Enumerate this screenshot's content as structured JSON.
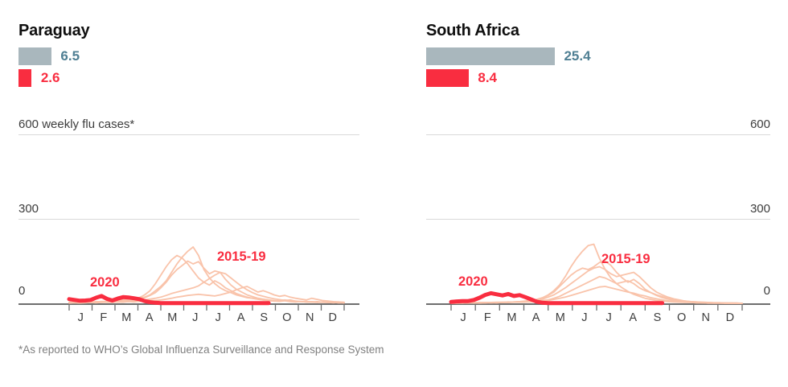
{
  "colors": {
    "red": "#f92d40",
    "salmon": "#f9c3aa",
    "gray_bar": "#a9b7bd",
    "blue_value_label": "#4f7f93",
    "gridline": "#d9d9d9",
    "axis": "#6e6e6e"
  },
  "footnote": "*As reported to WHO’s Global Influenza Surveillance and Response System",
  "months": [
    "J",
    "F",
    "M",
    "A",
    "M",
    "J",
    "J",
    "A",
    "S",
    "O",
    "N",
    "D"
  ],
  "panels": [
    {
      "title": "Paraguay",
      "bars": {
        "gray": {
          "value": 6.5,
          "label": "6.5"
        },
        "red": {
          "value": 2.6,
          "label": "2.6"
        }
      },
      "y_axis": {
        "top_label": "600 weekly flu cases*",
        "mid_label": "300",
        "zero_label": "0"
      },
      "annotations": {
        "current": "2020",
        "past": "2015-19"
      }
    },
    {
      "title": "South Africa",
      "bars": {
        "gray": {
          "value": 25.4,
          "label": "25.4"
        },
        "red": {
          "value": 8.4,
          "label": "8.4"
        }
      },
      "y_axis": {
        "top_label": "600",
        "mid_label": "300",
        "zero_label": "0"
      },
      "annotations": {
        "current": "2020",
        "past": "2015-19"
      }
    }
  ],
  "chart_data": [
    {
      "type": "line",
      "title": "Paraguay",
      "ylabel": "weekly flu cases",
      "ylim": [
        0,
        600
      ],
      "yticks": [
        0,
        300,
        600
      ],
      "months": [
        "J",
        "F",
        "M",
        "A",
        "M",
        "J",
        "J",
        "A",
        "S",
        "O",
        "N",
        "D"
      ],
      "summary_bars": {
        "gray_value": 6.5,
        "red_value": 2.6
      },
      "series": [
        {
          "name": "2015-19",
          "lines": [
            [
              3,
              4,
              3,
              5,
              4,
              6,
              5,
              7,
              8,
              10,
              12,
              15,
              14,
              18,
              22,
              30,
              45,
              60,
              80,
              110,
              140,
              165,
              185,
              200,
              170,
              120,
              90,
              70,
              55,
              45,
              38,
              30,
              25,
              20,
              18,
              15,
              12,
              10,
              8,
              10,
              12,
              9,
              7,
              6,
              5,
              6,
              4,
              5,
              3,
              4,
              3,
              2
            ],
            [
              2,
              3,
              2,
              4,
              3,
              5,
              4,
              6,
              5,
              8,
              10,
              12,
              15,
              20,
              30,
              45,
              70,
              100,
              130,
              155,
              170,
              160,
              140,
              115,
              90,
              75,
              65,
              80,
              70,
              55,
              45,
              35,
              28,
              22,
              18,
              15,
              12,
              10,
              8,
              7,
              9,
              6,
              5,
              7,
              5,
              4,
              3,
              4,
              3,
              2,
              3,
              2
            ],
            [
              4,
              3,
              5,
              4,
              6,
              5,
              7,
              6,
              8,
              7,
              9,
              11,
              13,
              16,
              20,
              28,
              38,
              55,
              75,
              100,
              120,
              135,
              150,
              140,
              148,
              125,
              105,
              115,
              110,
              85,
              65,
              50,
              40,
              30,
              24,
              18,
              15,
              12,
              10,
              8,
              10,
              12,
              8,
              6,
              7,
              5,
              6,
              4,
              3,
              4,
              2,
              3
            ],
            [
              2,
              3,
              2,
              3,
              4,
              3,
              5,
              4,
              6,
              5,
              7,
              6,
              8,
              10,
              12,
              15,
              18,
              22,
              28,
              35,
              40,
              45,
              50,
              55,
              62,
              75,
              88,
              100,
              110,
              105,
              90,
              75,
              60,
              48,
              38,
              30,
              25,
              20,
              16,
              13,
              10,
              8,
              7,
              6,
              5,
              4,
              5,
              4,
              3,
              3,
              2,
              2
            ],
            [
              1,
              2,
              1,
              2,
              3,
              2,
              3,
              4,
              3,
              5,
              4,
              6,
              5,
              7,
              8,
              10,
              10,
              12,
              15,
              18,
              22,
              25,
              28,
              30,
              32,
              30,
              28,
              26,
              30,
              35,
              40,
              48,
              55,
              60,
              50,
              40,
              45,
              38,
              30,
              25,
              28,
              22,
              18,
              15,
              12,
              18,
              14,
              10,
              8,
              6,
              5,
              4
            ]
          ]
        },
        {
          "name": "2020",
          "values": [
            15,
            12,
            9,
            10,
            12,
            20,
            26,
            16,
            10,
            17,
            22,
            21,
            18,
            15,
            8,
            4,
            2,
            1,
            1,
            1,
            1,
            1,
            1,
            1,
            1,
            1,
            1,
            1,
            1,
            1,
            1,
            1,
            1,
            1,
            1,
            1,
            1,
            1
          ]
        }
      ]
    },
    {
      "type": "line",
      "title": "South Africa",
      "ylabel": "weekly flu cases",
      "ylim": [
        0,
        600
      ],
      "yticks": [
        0,
        300,
        600
      ],
      "months": [
        "J",
        "F",
        "M",
        "A",
        "M",
        "J",
        "J",
        "A",
        "S",
        "O",
        "N",
        "D"
      ],
      "summary_bars": {
        "gray_value": 25.4,
        "red_value": 8.4
      },
      "series": [
        {
          "name": "2015-19",
          "lines": [
            [
              1,
              1,
              2,
              1,
              2,
              2,
              3,
              2,
              3,
              4,
              3,
              5,
              6,
              8,
              10,
              14,
              20,
              30,
              45,
              65,
              95,
              130,
              160,
              185,
              205,
              210,
              160,
              120,
              90,
              70,
              55,
              42,
              32,
              25,
              18,
              14,
              10,
              8,
              6,
              5,
              4,
              3,
              3,
              2,
              2,
              1,
              1,
              1,
              1,
              1,
              0,
              0
            ],
            [
              1,
              2,
              1,
              2,
              2,
              3,
              2,
              3,
              3,
              4,
              4,
              5,
              6,
              6,
              8,
              12,
              18,
              28,
              40,
              60,
              80,
              100,
              115,
              125,
              120,
              130,
              145,
              150,
              135,
              110,
              90,
              75,
              85,
              70,
              50,
              38,
              28,
              20,
              15,
              10,
              8,
              6,
              4,
              3,
              2,
              2,
              1,
              1,
              1,
              0,
              0,
              0
            ],
            [
              2,
              1,
              2,
              2,
              3,
              2,
              3,
              3,
              4,
              3,
              5,
              4,
              6,
              7,
              8,
              10,
              15,
              22,
              30,
              42,
              55,
              70,
              85,
              100,
              115,
              125,
              130,
              120,
              105,
              95,
              100,
              105,
              110,
              95,
              75,
              55,
              40,
              30,
              22,
              16,
              12,
              8,
              6,
              5,
              4,
              3,
              2,
              2,
              1,
              1,
              1,
              0
            ],
            [
              1,
              1,
              1,
              2,
              1,
              2,
              2,
              3,
              2,
              3,
              3,
              4,
              4,
              5,
              6,
              8,
              10,
              12,
              18,
              25,
              35,
              45,
              55,
              65,
              75,
              85,
              95,
              90,
              80,
              70,
              75,
              80,
              70,
              55,
              45,
              38,
              30,
              24,
              18,
              14,
              10,
              8,
              6,
              5,
              4,
              3,
              2,
              2,
              1,
              1,
              1,
              0
            ],
            [
              0,
              1,
              1,
              1,
              2,
              1,
              2,
              2,
              2,
              3,
              3,
              4,
              4,
              5,
              5,
              6,
              8,
              10,
              14,
              18,
              22,
              28,
              34,
              40,
              46,
              52,
              58,
              60,
              55,
              50,
              45,
              40,
              36,
              30,
              26,
              20,
              16,
              12,
              9,
              7,
              5,
              4,
              3,
              2,
              2,
              1,
              1,
              1,
              0,
              0,
              0,
              0
            ]
          ]
        },
        {
          "name": "2020",
          "values": [
            5,
            7,
            8,
            8,
            12,
            20,
            30,
            36,
            32,
            28,
            33,
            26,
            29,
            22,
            14,
            6,
            2,
            1,
            1,
            1,
            1,
            1,
            1,
            1,
            1,
            1,
            1,
            1,
            1,
            1,
            1,
            1,
            1,
            1,
            1,
            1,
            1,
            1
          ]
        }
      ]
    }
  ]
}
